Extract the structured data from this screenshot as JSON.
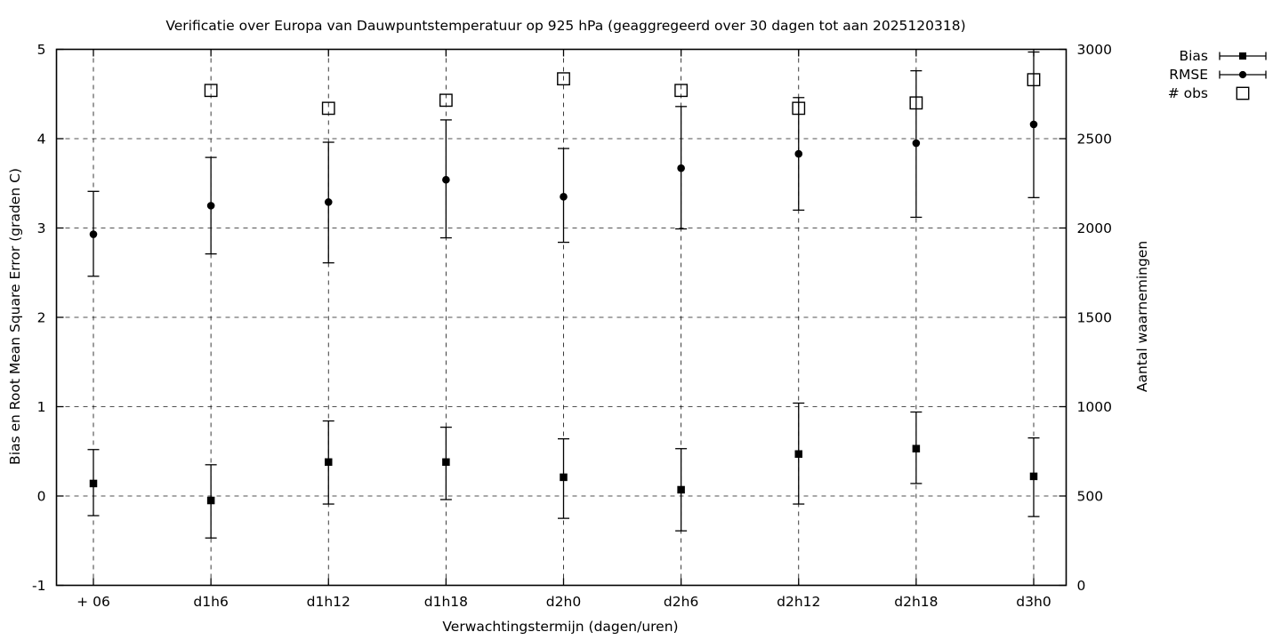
{
  "page": {
    "background": "#ffffff",
    "foreground": "#000000"
  },
  "chart_data": {
    "type": "scatter",
    "title": "Verificatie over Europa van Dauwpuntstemperatuur op 925 hPa (geaggregeerd over 30 dagen tot aan 2025120318)",
    "grid": true,
    "x_axis": {
      "label": "Verwachtingstermijn (dagen/uren)",
      "categories": [
        "+ 06",
        "d1h6",
        "d1h12",
        "d1h18",
        "d2h0",
        "d2h6",
        "d2h12",
        "d2h18",
        "d3h0"
      ]
    },
    "left_axis": {
      "label": "Bias en Root Mean Square Error (graden C)",
      "min": -1,
      "max": 5,
      "ticks": [
        -1,
        0,
        1,
        2,
        3,
        4,
        5
      ]
    },
    "right_axis": {
      "label": "Aantal waarnemingen",
      "min": 0,
      "max": 3000,
      "ticks": [
        0,
        500,
        1000,
        1500,
        2000,
        2500,
        3000
      ]
    },
    "legend": {
      "position": "top-right-outside",
      "items": [
        {
          "label": "Bias",
          "symbol": "errorbar-square"
        },
        {
          "label": "RMSE",
          "symbol": "errorbar-circle"
        },
        {
          "label": "# obs",
          "symbol": "open-square"
        }
      ]
    },
    "series": {
      "bias": {
        "name": "Bias",
        "axis": "left",
        "marker": "filled-square",
        "values": [
          0.14,
          -0.05,
          0.38,
          0.38,
          0.21,
          0.07,
          0.47,
          0.53,
          0.22
        ],
        "err_low": [
          -0.22,
          -0.47,
          -0.09,
          -0.04,
          -0.25,
          -0.39,
          -0.09,
          0.14,
          -0.23
        ],
        "err_high": [
          0.52,
          0.35,
          0.84,
          0.77,
          0.64,
          0.53,
          1.04,
          0.94,
          0.65
        ]
      },
      "rmse": {
        "name": "RMSE",
        "axis": "left",
        "marker": "filled-circle",
        "values": [
          2.93,
          3.25,
          3.29,
          3.54,
          3.35,
          3.67,
          3.83,
          3.95,
          4.16
        ],
        "err_low": [
          2.46,
          2.71,
          2.61,
          2.89,
          2.84,
          2.99,
          3.2,
          3.12,
          3.34
        ],
        "err_high": [
          3.41,
          3.79,
          3.96,
          4.21,
          3.89,
          4.36,
          4.46,
          4.76,
          4.97
        ]
      },
      "obs": {
        "name": "# obs",
        "axis": "right",
        "marker": "open-square",
        "values": [
          null,
          2770,
          2670,
          2715,
          2835,
          2770,
          2670,
          2700,
          2830
        ]
      }
    },
    "colors": {
      "foreground": "#000000",
      "background": "#ffffff"
    }
  }
}
